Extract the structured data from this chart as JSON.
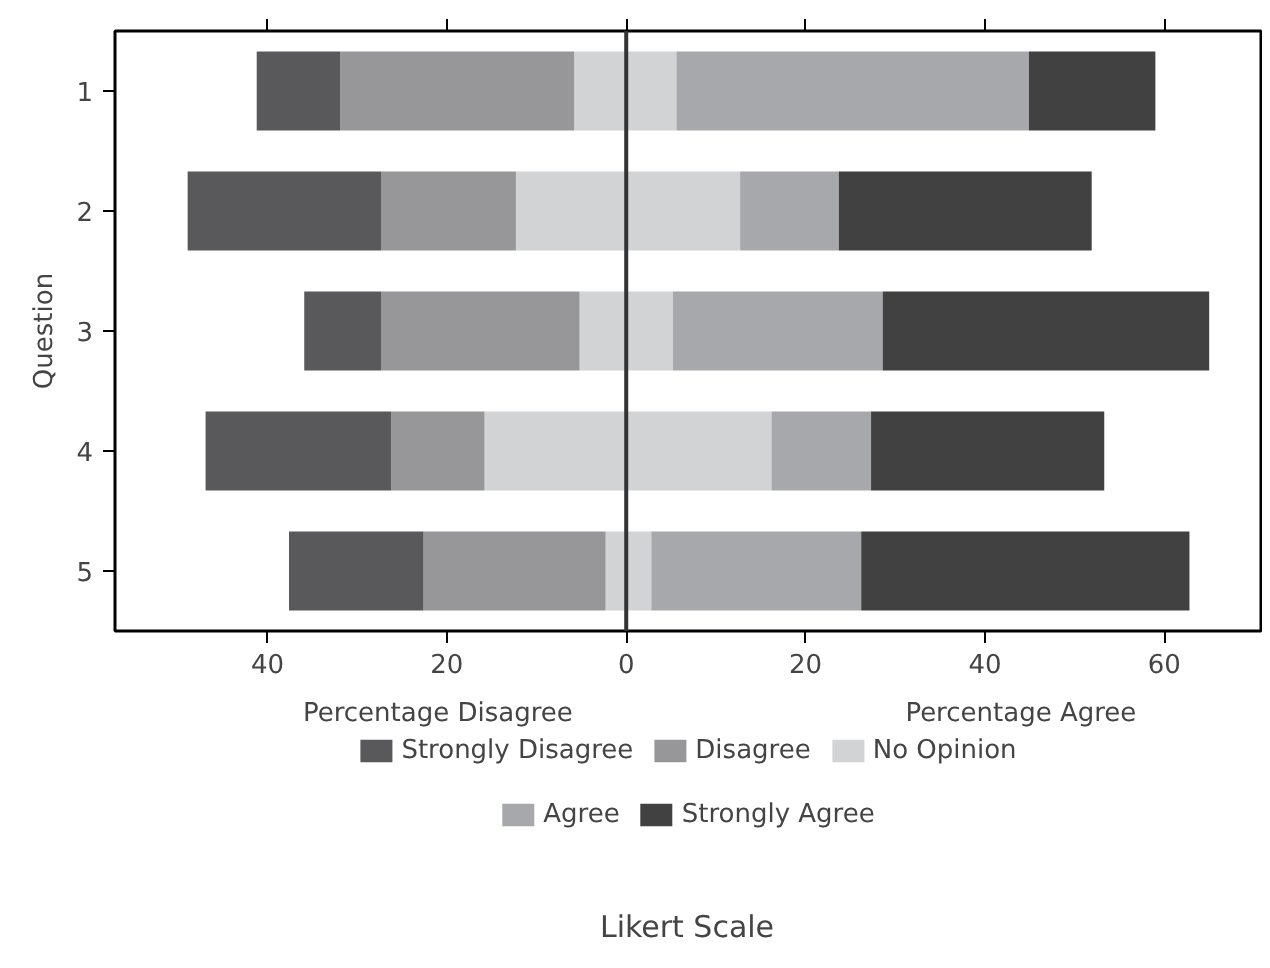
{
  "chart_data": {
    "type": "bar",
    "orientation": "horizontal",
    "stacked": true,
    "ylabel": "Question",
    "categories": [
      "1",
      "2",
      "3",
      "4",
      "5"
    ],
    "series": [
      {
        "name": "No Opinion",
        "color": "#d2d3d5",
        "values": [
          -5.8,
          -12.3,
          -5.2,
          -15.8,
          -2.3
        ]
      },
      {
        "name": "Disagree",
        "color": "#97979a",
        "values": [
          -26.1,
          -15.0,
          -22.1,
          -10.4,
          -20.3
        ]
      },
      {
        "name": "Strongly Disagree",
        "color": "#59595b",
        "values": [
          -9.3,
          -21.6,
          -8.6,
          -20.7,
          -15.0
        ]
      },
      {
        "color": "#d2d3d5",
        "values": [
          5.6,
          12.7,
          5.2,
          16.2,
          2.8
        ]
      },
      {
        "name": "Agree",
        "color": "#a7a8ab",
        "values": [
          39.3,
          11.0,
          23.4,
          11.1,
          23.4
        ]
      },
      {
        "name": "Strongly Agree",
        "color": "#414141",
        "values": [
          14.1,
          28.2,
          36.4,
          26.0,
          36.6
        ]
      }
    ],
    "xlim": [
      -57,
      71
    ],
    "xticks": [
      {
        "value": -40,
        "label": "40"
      },
      {
        "value": -20,
        "label": "20"
      },
      0,
      20,
      40,
      60
    ],
    "ref_lines": [
      {
        "axis": "x",
        "value": 0,
        "color": "#333333"
      }
    ],
    "annotations": [
      "Percentage Disagree",
      "Percentage Agree",
      "Likert Scale"
    ],
    "grid": false,
    "legend": "bottom"
  }
}
